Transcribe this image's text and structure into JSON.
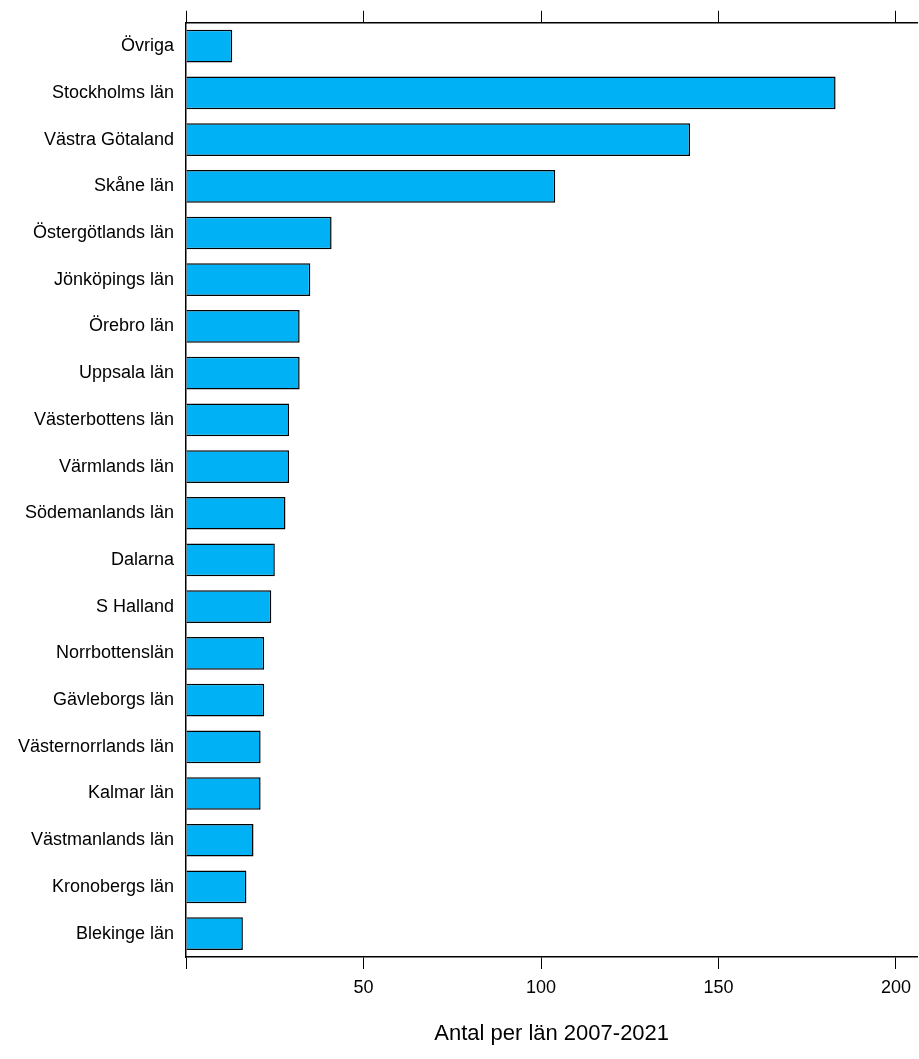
{
  "chart_data": {
    "type": "bar",
    "orientation": "horizontal",
    "categories": [
      "Övriga",
      "Stockholms län",
      "Västra Götaland",
      "Skåne län",
      "Östergötlands län",
      "Jönköpings län",
      "Örebro län",
      "Uppsala län",
      "Västerbottens län",
      "Värmlands län",
      "Södemanlands län",
      "Dalarna",
      "S Halland",
      "Norrbottenslän",
      "Gävleborgs län",
      "Västernorrlands län",
      "Kalmar län",
      "Västmanlands län",
      "Kronobergs län",
      "Blekinge län"
    ],
    "values": [
      13,
      183,
      142,
      104,
      41,
      35,
      32,
      32,
      29,
      29,
      28,
      25,
      24,
      22,
      22,
      21,
      21,
      19,
      17,
      16
    ],
    "color": "#00b2f5",
    "xlabel": "Antal per län 2007-2021",
    "xlim": [
      0,
      206
    ],
    "xticks": [
      {
        "value": 0,
        "label": null
      },
      50,
      100,
      150,
      200
    ],
    "grid": false,
    "legend": false
  }
}
